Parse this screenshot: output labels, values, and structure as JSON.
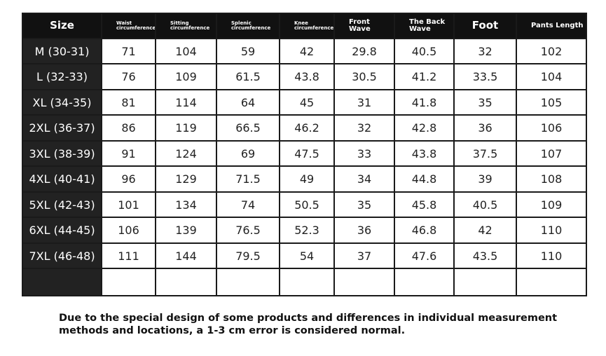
{
  "table": {
    "headers": [
      "Size",
      "Waist circumference",
      "Sitting circumference",
      "Splenic circumference",
      "Knee circumference",
      "Front Wave",
      "The Back Wave",
      "Foot",
      "Pants Length"
    ],
    "rows": [
      {
        "size": "M  (30-31)",
        "values": [
          "71",
          "104",
          "59",
          "42",
          "29.8",
          "40.5",
          "32",
          "102"
        ]
      },
      {
        "size": "L  (32-33)",
        "values": [
          "76",
          "109",
          "61.5",
          "43.8",
          "30.5",
          "41.2",
          "33.5",
          "104"
        ]
      },
      {
        "size": "XL  (34-35)",
        "values": [
          "81",
          "114",
          "64",
          "45",
          "31",
          "41.8",
          "35",
          "105"
        ]
      },
      {
        "size": "2XL  (36-37)",
        "values": [
          "86",
          "119",
          "66.5",
          "46.2",
          "32",
          "42.8",
          "36",
          "106"
        ]
      },
      {
        "size": "3XL  (38-39)",
        "values": [
          "91",
          "124",
          "69",
          "47.5",
          "33",
          "43.8",
          "37.5",
          "107"
        ]
      },
      {
        "size": "4XL  (40-41)",
        "values": [
          "96",
          "129",
          "71.5",
          "49",
          "34",
          "44.8",
          "39",
          "108"
        ]
      },
      {
        "size": "5XL  (42-43)",
        "values": [
          "101",
          "134",
          "74",
          "50.5",
          "35",
          "45.8",
          "40.5",
          "109"
        ]
      },
      {
        "size": "6XL  (44-45)",
        "values": [
          "106",
          "139",
          "76.5",
          "52.3",
          "36",
          "46.8",
          "42",
          "110"
        ]
      },
      {
        "size": "7XL  (46-48)",
        "values": [
          "111",
          "144",
          "79.5",
          "54",
          "37",
          "47.6",
          "43.5",
          "110"
        ]
      }
    ]
  },
  "note": "Due to the special design of some products and differences in individual measurement methods and locations, a 1-3 cm error is considered normal.",
  "colors": {
    "header_bg": "#111111",
    "size_column_bg": "#222222",
    "grid": "#1a1a1a",
    "text": "#222222"
  }
}
